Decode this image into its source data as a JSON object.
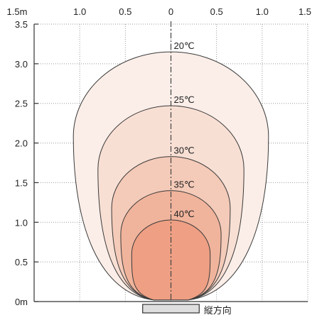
{
  "chart_data": {
    "type": "area",
    "title": "",
    "xlabel": "",
    "ylabel": "",
    "direction_label": "縦方向",
    "x_tick_labels": [
      "1.5m",
      "1.0",
      "0.5",
      "0",
      "0.5",
      "1.0",
      "1.5"
    ],
    "x_tick_values": [
      -1.5,
      -1.0,
      -0.5,
      0,
      0.5,
      1.0,
      1.5
    ],
    "y_tick_labels": [
      "0m",
      "0.5",
      "1.0",
      "1.5",
      "2.0",
      "2.5",
      "3.0",
      "3.5"
    ],
    "y_tick_values": [
      0,
      0.5,
      1.0,
      1.5,
      2.0,
      2.5,
      3.0,
      3.5
    ],
    "xlim": [
      -1.5,
      1.5
    ],
    "ylim": [
      0,
      3.5
    ],
    "grid": "dotted",
    "source_half_width": 0.19,
    "series": [
      {
        "name": "20℃",
        "max_height": 3.15,
        "max_half_width": 1.07,
        "color": "#fbeee8"
      },
      {
        "name": "25℃",
        "max_height": 2.47,
        "max_half_width": 0.8,
        "color": "#f8dfd4"
      },
      {
        "name": "30℃",
        "max_height": 1.83,
        "max_half_width": 0.65,
        "color": "#f4cab8"
      },
      {
        "name": "35℃",
        "max_height": 1.4,
        "max_half_width": 0.55,
        "color": "#f0b49c"
      },
      {
        "name": "40℃",
        "max_height": 1.03,
        "max_half_width": 0.43,
        "color": "#ee9f84"
      }
    ]
  }
}
